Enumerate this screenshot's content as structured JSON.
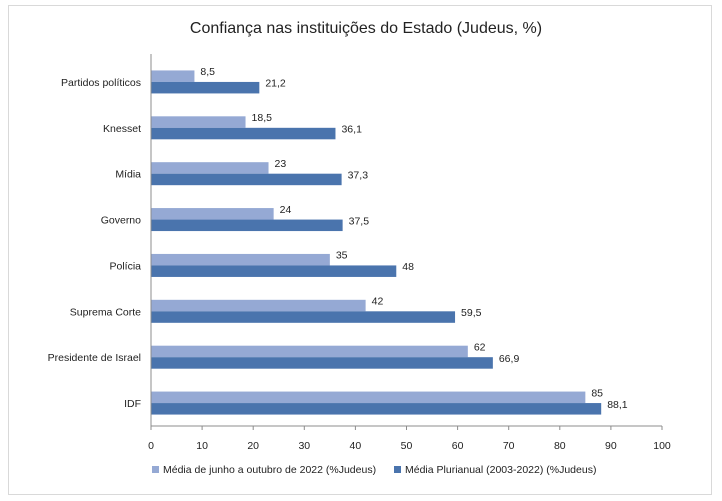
{
  "chart_data": {
    "type": "bar",
    "orientation": "horizontal",
    "title": "Confiança nas instituições do Estado (Judeus, %)",
    "categories": [
      "Partidos políticos",
      "Knesset",
      "Mídia",
      "Governo",
      "Polícia",
      "Suprema Corte",
      "Presidente de Israel",
      "IDF"
    ],
    "series": [
      {
        "name": "Média de junho a outubro de 2022 (%Judeus)",
        "values": [
          8.5,
          18.5,
          23,
          24,
          35,
          42,
          62,
          85
        ],
        "labels": [
          "8,5",
          "18,5",
          "23",
          "24",
          "35",
          "42",
          "62",
          "85"
        ],
        "color": "#95a9d4"
      },
      {
        "name": "Média Plurianual (2003-2022) (%Judeus)",
        "values": [
          21.2,
          36.1,
          37.3,
          37.5,
          48,
          59.5,
          66.9,
          88.1
        ],
        "labels": [
          "21,2",
          "36,1",
          "37,3",
          "37,5",
          "48",
          "59,5",
          "66,9",
          "88,1"
        ],
        "color": "#4a74ad"
      }
    ],
    "xlim": [
      0,
      100
    ],
    "xticks": [
      0,
      10,
      20,
      30,
      40,
      50,
      60,
      70,
      80,
      90,
      100
    ],
    "grid": false,
    "legend_position": "bottom"
  }
}
